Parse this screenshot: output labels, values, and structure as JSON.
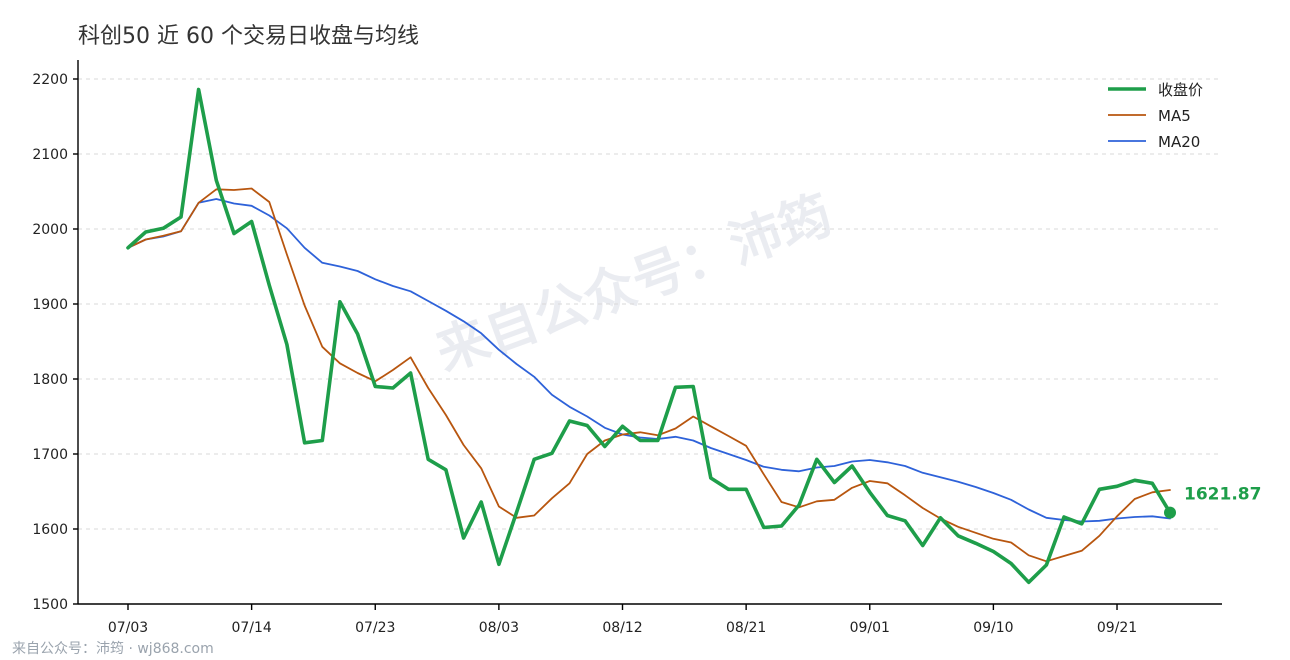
{
  "title": "科创50 近 60 个交易日收盘与均线",
  "watermark": "来自公众号：沛筠",
  "footer": "来自公众号：沛筠 · wj868.com",
  "colors": {
    "close": "#1e9e4a",
    "ma5": "#b8560f",
    "ma20": "#2e62d9"
  },
  "chart_data": {
    "type": "line",
    "title": "科创50 近 60 个交易日收盘与均线",
    "ylim": [
      1500,
      2200
    ],
    "yticks": [
      1500,
      1600,
      1700,
      1800,
      1900,
      2000,
      2100,
      2200
    ],
    "xtick_labels": [
      {
        "index": 0,
        "label": "07/03"
      },
      {
        "index": 7,
        "label": "07/14"
      },
      {
        "index": 14,
        "label": "07/23"
      },
      {
        "index": 21,
        "label": "08/03"
      },
      {
        "index": 28,
        "label": "08/12"
      },
      {
        "index": 35,
        "label": "08/21"
      },
      {
        "index": 42,
        "label": "09/01"
      },
      {
        "index": 49,
        "label": "09/10"
      },
      {
        "index": 56,
        "label": "09/21"
      }
    ],
    "grid": true,
    "legend_position": "top-right",
    "end_label": "1621.87",
    "series": [
      {
        "name": "收盘价",
        "values": [
          1975,
          1996,
          2001,
          2016,
          2186,
          2065,
          1994,
          2010,
          1925,
          1846,
          1715,
          1718,
          1903,
          1860,
          1790,
          1788,
          1808,
          1693,
          1679,
          1588,
          1636,
          1553,
          1622,
          1693,
          1701,
          1744,
          1738,
          1710,
          1737,
          1718,
          1718,
          1789,
          1790,
          1668,
          1653,
          1653,
          1602,
          1604,
          1632,
          1693,
          1662,
          1684,
          1649,
          1618,
          1611,
          1578,
          1615,
          1591,
          1581,
          1570,
          1554,
          1529,
          1552,
          1616,
          1607,
          1653,
          1657,
          1665,
          1661,
          1621.87
        ]
      },
      {
        "name": "MA5",
        "values": [
          1975,
          1986,
          1991,
          1997,
          2035,
          2053,
          2052,
          2054,
          2036,
          1966,
          1898,
          1843,
          1821,
          1808,
          1797,
          1812,
          1829,
          1788,
          1752,
          1712,
          1681,
          1630,
          1615,
          1618,
          1641,
          1661,
          1700,
          1718,
          1726,
          1729,
          1725,
          1734,
          1750,
          1737,
          1724,
          1711,
          1673,
          1636,
          1629,
          1637,
          1639,
          1655,
          1664,
          1661,
          1645,
          1628,
          1614,
          1603,
          1595,
          1587,
          1582,
          1565,
          1557,
          1564,
          1571,
          1591,
          1617,
          1640,
          1649,
          1652
        ]
      },
      {
        "name": "MA20",
        "values": [
          1975,
          1986,
          1990,
          1997,
          2035,
          2040,
          2034,
          2031,
          2018,
          2001,
          1975,
          1955,
          1950,
          1944,
          1933,
          1924,
          1917,
          1904,
          1891,
          1877,
          1861,
          1839,
          1820,
          1803,
          1779,
          1763,
          1750,
          1735,
          1726,
          1722,
          1720,
          1723,
          1718,
          1708,
          1700,
          1692,
          1683,
          1679,
          1677,
          1682,
          1684,
          1690,
          1692,
          1689,
          1684,
          1675,
          1669,
          1663,
          1656,
          1648,
          1639,
          1626,
          1615,
          1612,
          1610,
          1611,
          1614,
          1616,
          1617,
          1614
        ]
      }
    ]
  }
}
